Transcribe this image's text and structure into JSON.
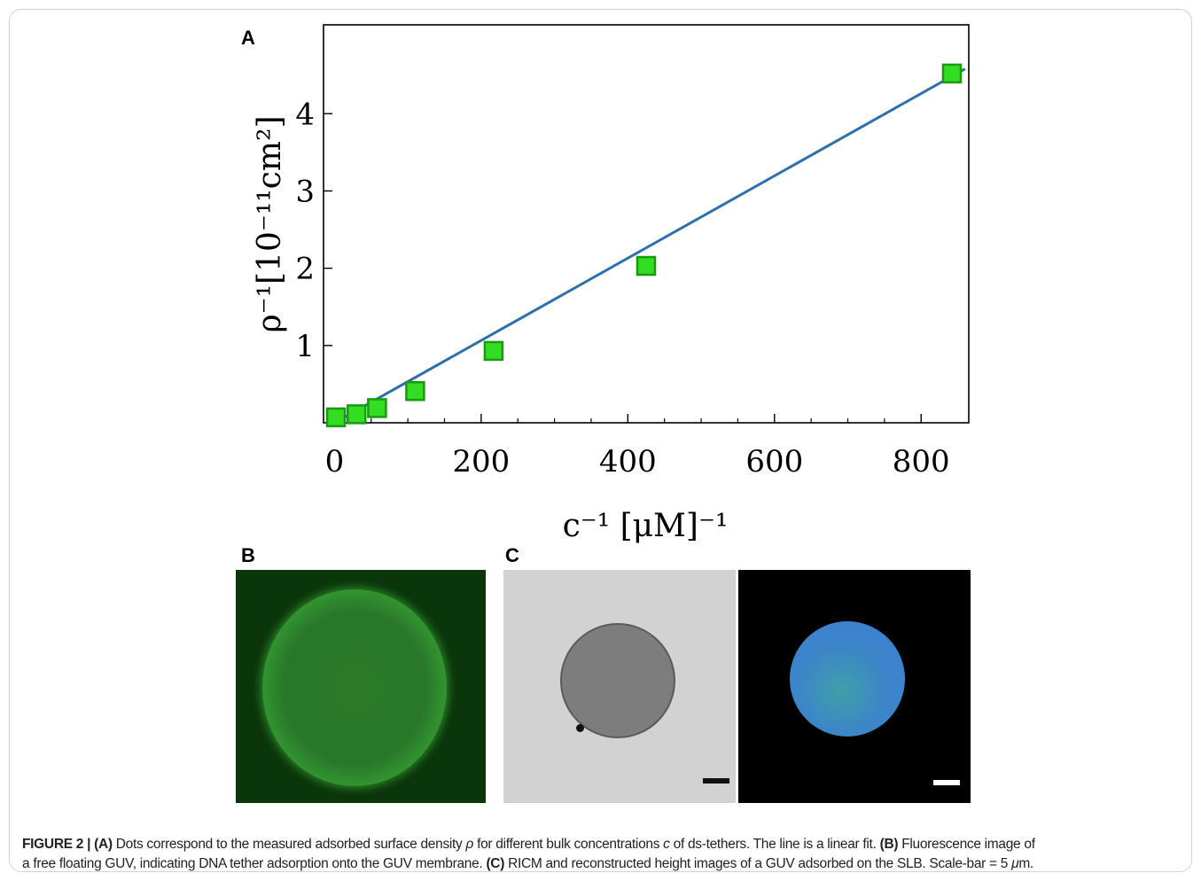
{
  "panels": {
    "a": "A",
    "b": "B",
    "c": "C"
  },
  "chart_data": {
    "type": "scatter",
    "x": [
      2,
      30,
      58,
      110,
      217,
      425,
      842
    ],
    "y": [
      0.07,
      0.11,
      0.19,
      0.41,
      0.93,
      2.03,
      4.52
    ],
    "fit_line": {
      "x": [
        0,
        860
      ],
      "y": [
        0.0,
        4.58
      ]
    },
    "xlim": [
      -15,
      865
    ],
    "ylim": [
      0,
      5.15
    ],
    "xticks": [
      0,
      200,
      400,
      600,
      800
    ],
    "yticks": [
      1,
      2,
      3,
      4
    ],
    "xlabel": "c⁻¹ [μM]⁻¹",
    "ylabel": "ρ⁻¹[10⁻¹¹cm²]",
    "marker": "square",
    "colors": {
      "marker_fill": "#33dd22",
      "marker_edge": "#1a9a10",
      "line": "#2e6fad"
    }
  },
  "caption": {
    "figure_label": "FIGURE 2 | (A)",
    "a_text_1": " Dots correspond to the measured adsorbed surface density ",
    "rho": "ρ",
    "a_text_2": " for different bulk concentrations ",
    "c": "c",
    "a_text_3": " of ds-tethers. The line is a linear fit. ",
    "b_label": "(B)",
    "b_text_1": " Fluorescence image of",
    "b_text_2": "a free floating GUV, indicating DNA tether adsorption onto the GUV membrane. ",
    "c_label": "(C)",
    "c_text_1": " RICM and reconstructed height images of a GUV adsorbed on the SLB. Scale-bar = 5 ",
    "mu": "μ",
    "c_text_2": "m."
  }
}
